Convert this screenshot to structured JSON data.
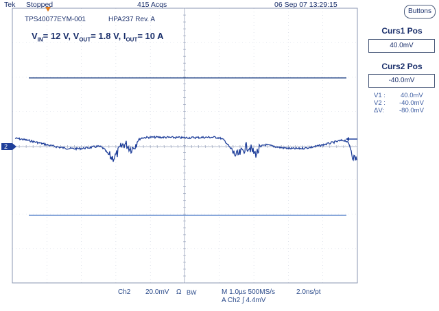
{
  "header": {
    "brand": "Tek",
    "run_state": "Stopped",
    "acq_count": "415 Acqs",
    "timestamp": "06 Sep 07 13:29:15"
  },
  "buttons_label": "Buttons",
  "annotations": {
    "part_number": "TPS40077EYM-001",
    "board_rev": "HPA237 Rev. A",
    "conditions": {
      "vin_label": "V",
      "vin_sub": "IN",
      "vin_value": "= 12 V, ",
      "vout_label": "V",
      "vout_sub": "OUT",
      "vout_value": "= 1.8 V, ",
      "iout_label": "I",
      "iout_sub": "OUT",
      "iout_value": "= 10 A"
    }
  },
  "cursors": {
    "curs1_label": "Curs1 Pos",
    "curs1_value": "40.0mV",
    "curs2_label": "Curs2 Pos",
    "curs2_value": "-40.0mV",
    "v1_label": "V1 :",
    "v1_value": "40.0mV",
    "v2_label": "V2 :",
    "v2_value": "-40.0mV",
    "dv_label": "ΔV:",
    "dv_value": "-80.0mV",
    "curs1_level_mV": 40,
    "curs2_level_mV": -40
  },
  "channel": {
    "marker": "2",
    "name": "Ch2",
    "scale": "20.0mV",
    "coupling": "Ω",
    "bw": "BW"
  },
  "timebase": {
    "main": "M 1.0µs 500MS/s",
    "resolution": "2.0ns/pt",
    "trigger": "A  Ch2  ∫  4.4mV"
  },
  "colors": {
    "trace": "#1f3f9a",
    "grid": "#c9cfdc",
    "cursor1": "#2a4a8a",
    "cursor2": "#6a90d0",
    "text": "#1a2f6b"
  }
}
